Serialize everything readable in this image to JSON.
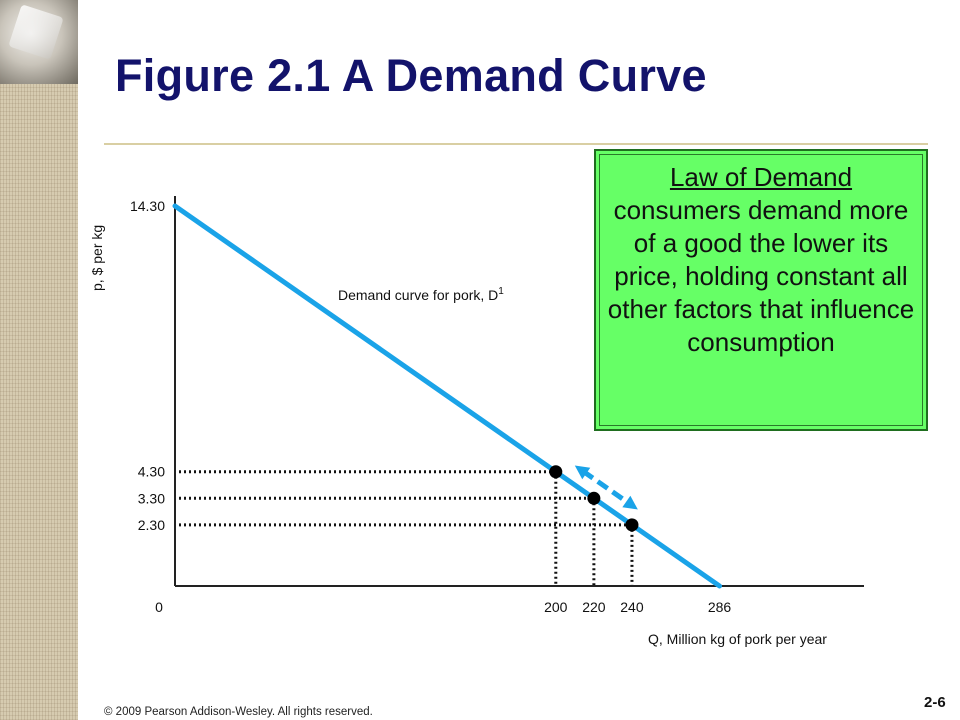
{
  "slide": {
    "title": "Figure 2.1  A Demand Curve",
    "copyright": "© 2009 Pearson Addison-Wesley. All rights reserved.",
    "page_number": "2-6"
  },
  "callout": {
    "heading": "Law of Demand",
    "body": "consumers demand more of a good the lower its price, holding constant all other factors that influence consumption"
  },
  "colors": {
    "title": "#13136b",
    "demand_line": "#1aa3e8",
    "arrow": "#1aa3e8",
    "callout_bg": "#66ff66"
  },
  "chart_data": {
    "type": "line",
    "title": "",
    "xlabel": "Q, Million kg of pork per year",
    "ylabel": "p, $ per kg",
    "xlim": [
      0,
      300
    ],
    "ylim": [
      0,
      14.3
    ],
    "series": [
      {
        "name": "Demand curve for pork, D1",
        "label_main": "Demand curve for pork, D",
        "label_sup": "1",
        "x": [
          0,
          286
        ],
        "y": [
          14.3,
          0
        ]
      }
    ],
    "points": [
      {
        "x": 200,
        "y": 4.3
      },
      {
        "x": 220,
        "y": 3.3
      },
      {
        "x": 240,
        "y": 2.3
      }
    ],
    "x_ticks": [
      {
        "value": 0,
        "label": "0"
      },
      {
        "value": 200,
        "label": "200"
      },
      {
        "value": 220,
        "label": "220"
      },
      {
        "value": 240,
        "label": "240"
      },
      {
        "value": 286,
        "label": "286"
      }
    ],
    "y_ticks": [
      {
        "value": 14.3,
        "label": "14.30"
      },
      {
        "value": 4.3,
        "label": "4.30"
      },
      {
        "value": 3.3,
        "label": "3.30"
      },
      {
        "value": 2.3,
        "label": "2.30"
      }
    ],
    "arrow": {
      "from": {
        "x": 200,
        "y": 4.3
      },
      "to": {
        "x": 240,
        "y": 2.3
      },
      "style": "dashed",
      "bidirectional": true
    },
    "grid": false,
    "legend": "none"
  }
}
